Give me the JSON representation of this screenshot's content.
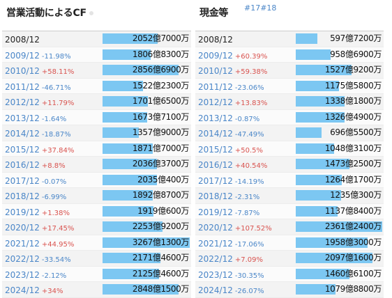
{
  "left": {
    "title": "営業活動によるCF",
    "max_value": 3267.13,
    "rows": [
      {
        "year": "2008/12",
        "change": "",
        "direction": "",
        "value": "2052億7000万",
        "amount": 2052.7
      },
      {
        "year": "2009/12",
        "change": "-11.98%",
        "direction": "down",
        "value": "1806億8300万",
        "amount": 1806.83
      },
      {
        "year": "2010/12",
        "change": "+58.11%",
        "direction": "up",
        "value": "2856億6900万",
        "amount": 2856.69
      },
      {
        "year": "2011/12",
        "change": "-46.71%",
        "direction": "down",
        "value": "1522億2300万",
        "amount": 1522.23
      },
      {
        "year": "2012/12",
        "change": "+11.79%",
        "direction": "up",
        "value": "1701億6500万",
        "amount": 1701.65
      },
      {
        "year": "2013/12",
        "change": "-1.64%",
        "direction": "down",
        "value": "1673億7100万",
        "amount": 1673.71
      },
      {
        "year": "2014/12",
        "change": "-18.87%",
        "direction": "down",
        "value": "1357億9000万",
        "amount": 1357.9
      },
      {
        "year": "2015/12",
        "change": "+37.84%",
        "direction": "up",
        "value": "1871億7000万",
        "amount": 1871.7
      },
      {
        "year": "2016/12",
        "change": "+8.8%",
        "direction": "up",
        "value": "2036億3700万",
        "amount": 2036.37
      },
      {
        "year": "2017/12",
        "change": "-0.07%",
        "direction": "down",
        "value": "2035億400万",
        "amount": 2035.04
      },
      {
        "year": "2018/12",
        "change": "-6.99%",
        "direction": "down",
        "value": "1892億8700万",
        "amount": 1892.87
      },
      {
        "year": "2019/12",
        "change": "+1.38%",
        "direction": "up",
        "value": "1919億600万",
        "amount": 1919.06
      },
      {
        "year": "2020/12",
        "change": "+17.45%",
        "direction": "up",
        "value": "2253億9200万",
        "amount": 2253.92
      },
      {
        "year": "2021/12",
        "change": "+44.95%",
        "direction": "up",
        "value": "3267億1300万",
        "amount": 3267.13
      },
      {
        "year": "2022/12",
        "change": "-33.54%",
        "direction": "down",
        "value": "2171億4600万",
        "amount": 2171.46
      },
      {
        "year": "2023/12",
        "change": "-2.12%",
        "direction": "down",
        "value": "2125億4600万",
        "amount": 2125.46
      },
      {
        "year": "2024/12",
        "change": "+34%",
        "direction": "up",
        "value": "2848億1500万",
        "amount": 2848.15
      }
    ]
  },
  "right": {
    "title": "現金等",
    "links": [
      "#17",
      "#18"
    ],
    "max_value": 2361.24,
    "rows": [
      {
        "year": "2008/12",
        "change": "",
        "direction": "",
        "value": "597億7200万",
        "amount": 597.72
      },
      {
        "year": "2009/12",
        "change": "+60.39%",
        "direction": "up",
        "value": "958億6900万",
        "amount": 958.69
      },
      {
        "year": "2010/12",
        "change": "+59.38%",
        "direction": "up",
        "value": "1527億9200万",
        "amount": 1527.92
      },
      {
        "year": "2011/12",
        "change": "-23.06%",
        "direction": "down",
        "value": "1175億5800万",
        "amount": 1175.58
      },
      {
        "year": "2012/12",
        "change": "+13.83%",
        "direction": "up",
        "value": "1338億1800万",
        "amount": 1338.18
      },
      {
        "year": "2013/12",
        "change": "-0.87%",
        "direction": "down",
        "value": "1326億4900万",
        "amount": 1326.49
      },
      {
        "year": "2014/12",
        "change": "-47.49%",
        "direction": "down",
        "value": "696億5500万",
        "amount": 696.55
      },
      {
        "year": "2015/12",
        "change": "+50.5%",
        "direction": "up",
        "value": "1048億3100万",
        "amount": 1048.31
      },
      {
        "year": "2016/12",
        "change": "+40.54%",
        "direction": "up",
        "value": "1473億2500万",
        "amount": 1473.25
      },
      {
        "year": "2017/12",
        "change": "-14.19%",
        "direction": "down",
        "value": "1264億1700万",
        "amount": 1264.17
      },
      {
        "year": "2018/12",
        "change": "-2.31%",
        "direction": "down",
        "value": "1235億300万",
        "amount": 1235.03
      },
      {
        "year": "2019/12",
        "change": "-7.87%",
        "direction": "down",
        "value": "1137億8400万",
        "amount": 1137.84
      },
      {
        "year": "2020/12",
        "change": "+107.52%",
        "direction": "up",
        "value": "2361億2400万",
        "amount": 2361.24
      },
      {
        "year": "2021/12",
        "change": "-17.06%",
        "direction": "down",
        "value": "1958億3000万",
        "amount": 1958.3
      },
      {
        "year": "2022/12",
        "change": "+7.09%",
        "direction": "up",
        "value": "2097億1600万",
        "amount": 2097.16
      },
      {
        "year": "2023/12",
        "change": "-30.35%",
        "direction": "down",
        "value": "1460億6100万",
        "amount": 1460.61
      },
      {
        "year": "2024/12",
        "change": "-26.07%",
        "direction": "down",
        "value": "1079億8800万",
        "amount": 1079.88
      }
    ]
  },
  "colors": {
    "bar": "#7cc7f2",
    "up": "#d9534f",
    "down": "#4a86c8"
  }
}
